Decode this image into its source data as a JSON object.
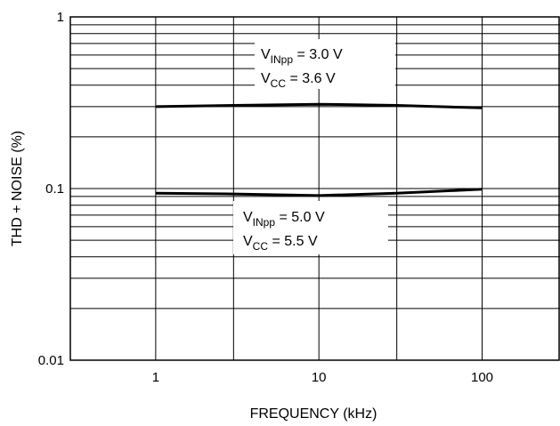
{
  "chart_data": {
    "type": "line",
    "title": "",
    "xlabel": "FREQUENCY (kHz)",
    "ylabel": "THD + NOISE (%)",
    "x_scale": "log",
    "y_scale": "log",
    "xlim": [
      0.3,
      300
    ],
    "ylim": [
      0.01,
      1
    ],
    "grid": true,
    "x_tick_labels": [
      "1",
      "10",
      "100"
    ],
    "x_ticks": [
      1,
      10,
      100
    ],
    "y_tick_labels": [
      "1",
      "0.1",
      "0.01"
    ],
    "y_ticks": [
      1,
      0.1,
      0.01
    ],
    "series": [
      {
        "x": [
          1,
          3,
          10,
          30,
          100
        ],
        "y": [
          0.3,
          0.305,
          0.31,
          0.305,
          0.295
        ]
      },
      {
        "x": [
          1,
          3,
          10,
          30,
          100
        ],
        "y": [
          0.094,
          0.093,
          0.091,
          0.094,
          0.099
        ]
      }
    ],
    "annotations": [
      {
        "line1": {
          "base": "V",
          "sub": "INpp",
          "rest": " = 3.0 V"
        },
        "line2": {
          "base": "V",
          "sub": "CC",
          "rest": " = 3.6 V"
        }
      },
      {
        "line1": {
          "base": "V",
          "sub": "INpp",
          "rest": " = 5.0 V"
        },
        "line2": {
          "base": "V",
          "sub": "CC",
          "rest": " = 5.5 V"
        }
      }
    ]
  }
}
